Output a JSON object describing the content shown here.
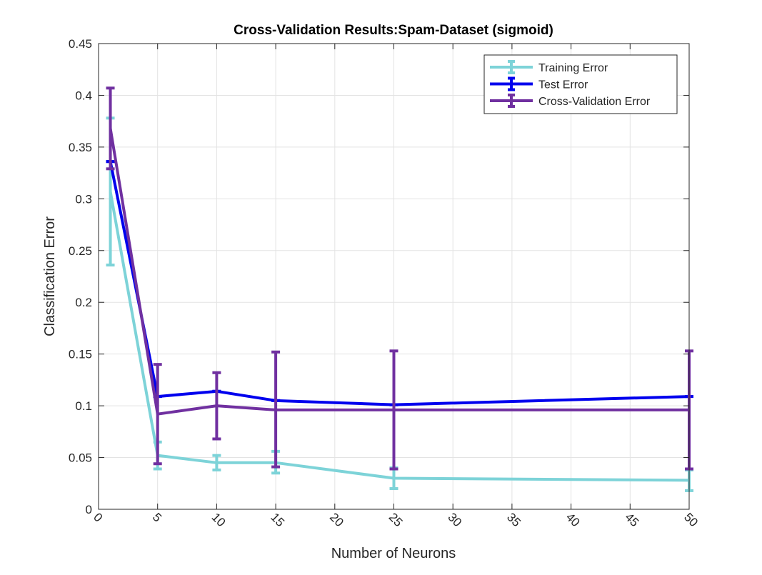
{
  "chart_data": {
    "type": "line",
    "title": "Cross-Validation Results:Spam-Dataset (sigmoid)",
    "xlabel": "Number of Neurons",
    "ylabel": "Classification Error",
    "xlim": [
      0,
      50
    ],
    "ylim": [
      0,
      0.45
    ],
    "xticks": [
      0,
      5,
      10,
      15,
      20,
      25,
      30,
      35,
      40,
      45,
      50
    ],
    "yticks": [
      0,
      0.05,
      0.1,
      0.15,
      0.2,
      0.25,
      0.3,
      0.35,
      0.4,
      0.45
    ],
    "xtick_labels": [
      "0",
      "5",
      "10",
      "15",
      "20",
      "25",
      "30",
      "35",
      "40",
      "45",
      "50"
    ],
    "ytick_labels": [
      "0",
      "0.05",
      "0.1",
      "0.15",
      "0.2",
      "0.25",
      "0.3",
      "0.35",
      "0.4",
      "0.45"
    ],
    "grid": true,
    "legend_position": "top-right",
    "x": [
      1,
      5,
      10,
      15,
      25,
      50
    ],
    "series": [
      {
        "name": "Training Error",
        "color": "#7dd3d8",
        "values": [
          0.307,
          0.052,
          0.045,
          0.045,
          0.03,
          0.028
        ],
        "err_low": [
          0.236,
          0.039,
          0.038,
          0.035,
          0.02,
          0.018
        ],
        "err_high": [
          0.378,
          0.065,
          0.052,
          0.056,
          0.04,
          0.038
        ]
      },
      {
        "name": "Test Error",
        "color": "#0000ee",
        "values": [
          0.336,
          0.109,
          0.114,
          0.105,
          0.101,
          0.109
        ],
        "err_low": [
          0.336,
          0.109,
          0.114,
          0.105,
          0.101,
          0.109
        ],
        "err_high": [
          0.336,
          0.109,
          0.114,
          0.105,
          0.101,
          0.109
        ]
      },
      {
        "name": "Cross-Validation Error",
        "color": "#7030a0",
        "values": [
          0.368,
          0.092,
          0.1,
          0.096,
          0.096,
          0.096
        ],
        "err_low": [
          0.329,
          0.044,
          0.068,
          0.041,
          0.039,
          0.039
        ],
        "err_high": [
          0.407,
          0.14,
          0.132,
          0.152,
          0.153,
          0.153
        ]
      }
    ]
  }
}
